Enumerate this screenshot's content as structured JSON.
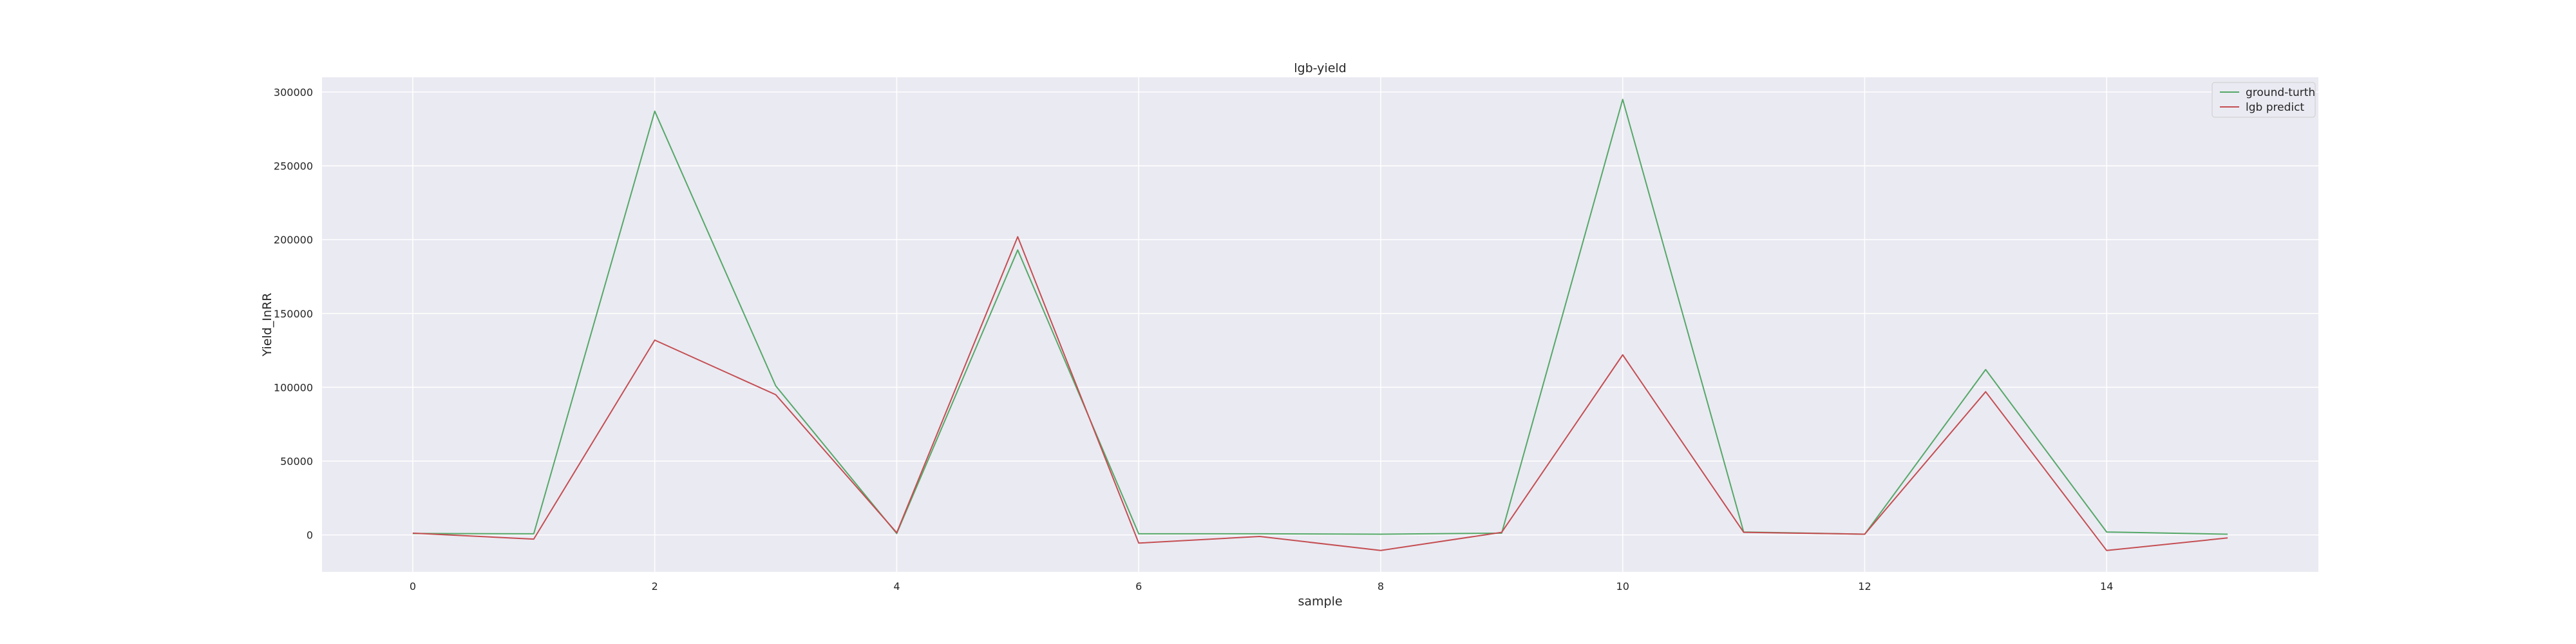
{
  "chart_data": {
    "type": "line",
    "title": "lgb-yield",
    "xlabel": "sample",
    "ylabel": "Yield_InRR",
    "x": [
      0,
      1,
      2,
      3,
      4,
      5,
      6,
      7,
      8,
      9,
      10,
      11,
      12,
      13,
      14,
      15
    ],
    "xlim": [
      -0.75,
      15.75
    ],
    "ylim": [
      -25000,
      310000
    ],
    "xticks": [
      0,
      2,
      4,
      6,
      8,
      10,
      12,
      14
    ],
    "yticks": [
      0,
      50000,
      100000,
      150000,
      200000,
      250000,
      300000
    ],
    "grid": true,
    "legend_position": "top-right",
    "series": [
      {
        "name": "ground-turth",
        "color": "#55a868",
        "values": [
          1000,
          800,
          287000,
          101000,
          1000,
          193000,
          800,
          800,
          500,
          1200,
          295000,
          2000,
          500,
          112000,
          2000,
          500
        ]
      },
      {
        "name": "lgb predict",
        "color": "#c44e52",
        "values": [
          1200,
          -2800,
          132000,
          95000,
          1500,
          202000,
          -5500,
          -1000,
          -10500,
          1800,
          122000,
          1800,
          500,
          97000,
          -10500,
          -2000
        ]
      }
    ]
  }
}
